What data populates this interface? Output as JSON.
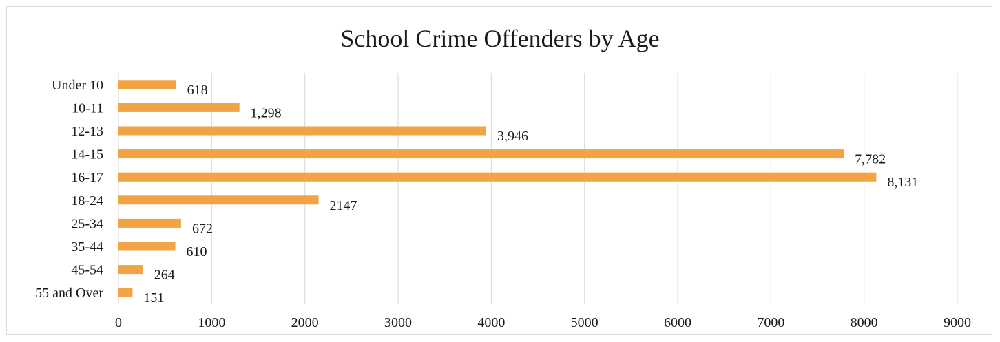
{
  "chart_data": {
    "type": "bar",
    "orientation": "horizontal",
    "title": "School Crime Offenders by Age",
    "categories": [
      "Under 10",
      "10-11",
      "12-13",
      "14-15",
      "16-17",
      "18-24",
      "25-34",
      "35-44",
      "45-54",
      "55 and Over"
    ],
    "values": [
      618,
      1298,
      3946,
      7782,
      8131,
      2147,
      672,
      610,
      264,
      151
    ],
    "data_labels": [
      "618",
      "1,298",
      "3,946",
      "7,782",
      "8,131",
      "2147",
      "672",
      "610",
      "264",
      "151"
    ],
    "xlim": [
      0,
      9000
    ],
    "x_ticks": [
      0,
      1000,
      2000,
      3000,
      4000,
      5000,
      6000,
      7000,
      8000,
      9000
    ],
    "x_tick_labels": [
      "0",
      "1000",
      "2000",
      "3000",
      "4000",
      "5000",
      "6000",
      "7000",
      "8000",
      "9000"
    ],
    "xlabel": "",
    "ylabel": "",
    "grid": "vertical",
    "legend": "none",
    "bar_color": "#f2a344",
    "grid_color": "#d9d9d9"
  }
}
